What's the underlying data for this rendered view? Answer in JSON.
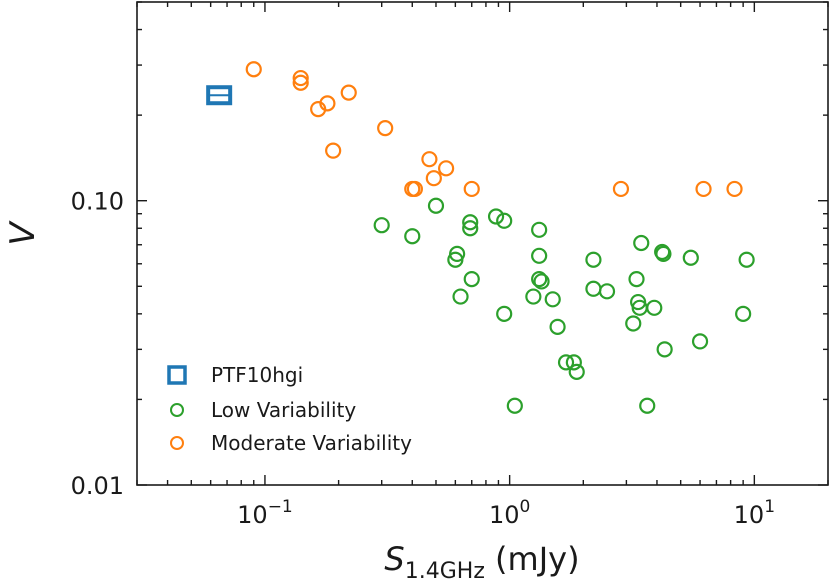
{
  "chart_data": {
    "type": "scatter",
    "title": "",
    "xlabel": {
      "symbol": "S",
      "subscript": "1.4GHz",
      "unit": " (mJy)"
    },
    "ylabel": "V",
    "xscale": "log",
    "yscale": "log",
    "xlim": [
      0.03,
      20
    ],
    "ylim": [
      0.01,
      0.5
    ],
    "legend_position": "lower-left",
    "x_ticks": [
      {
        "value": 0.1,
        "base": "10",
        "exp": "−1"
      },
      {
        "value": 1,
        "base": "10",
        "exp": "0"
      },
      {
        "value": 10,
        "base": "10",
        "exp": "1"
      }
    ],
    "y_ticks": [
      {
        "value": 0.01,
        "label": "0.01"
      },
      {
        "value": 0.1,
        "label": "0.10"
      }
    ],
    "series": [
      {
        "name": "PTF10hgi",
        "marker": "square",
        "color": "#1f77b4",
        "points": [
          [
            0.065,
            0.235
          ]
        ]
      },
      {
        "name": "Low Variability",
        "marker": "circle",
        "color": "#2ca02c",
        "points": [
          [
            0.3,
            0.082
          ],
          [
            0.4,
            0.075
          ],
          [
            0.5,
            0.096
          ],
          [
            0.6,
            0.062
          ],
          [
            0.61,
            0.065
          ],
          [
            0.63,
            0.046
          ],
          [
            0.69,
            0.084
          ],
          [
            0.69,
            0.08
          ],
          [
            0.7,
            0.053
          ],
          [
            0.88,
            0.088
          ],
          [
            0.95,
            0.085
          ],
          [
            0.95,
            0.04
          ],
          [
            1.05,
            0.019
          ],
          [
            1.25,
            0.046
          ],
          [
            1.32,
            0.079
          ],
          [
            1.32,
            0.064
          ],
          [
            1.32,
            0.053
          ],
          [
            1.35,
            0.052
          ],
          [
            1.5,
            0.045
          ],
          [
            1.57,
            0.036
          ],
          [
            1.7,
            0.027
          ],
          [
            1.83,
            0.027
          ],
          [
            1.88,
            0.025
          ],
          [
            2.2,
            0.062
          ],
          [
            2.2,
            0.049
          ],
          [
            2.5,
            0.048
          ],
          [
            3.2,
            0.037
          ],
          [
            3.3,
            0.053
          ],
          [
            3.35,
            0.044
          ],
          [
            3.4,
            0.042
          ],
          [
            3.45,
            0.071
          ],
          [
            3.65,
            0.019
          ],
          [
            3.9,
            0.042
          ],
          [
            4.2,
            0.066
          ],
          [
            4.25,
            0.065
          ],
          [
            4.3,
            0.03
          ],
          [
            5.5,
            0.063
          ],
          [
            6.0,
            0.032
          ],
          [
            9.0,
            0.04
          ],
          [
            9.3,
            0.062
          ]
        ]
      },
      {
        "name": "Moderate Variability",
        "marker": "circle",
        "color": "#ff7f0e",
        "points": [
          [
            0.09,
            0.29
          ],
          [
            0.14,
            0.27
          ],
          [
            0.14,
            0.26
          ],
          [
            0.165,
            0.21
          ],
          [
            0.18,
            0.22
          ],
          [
            0.19,
            0.15
          ],
          [
            0.22,
            0.24
          ],
          [
            0.31,
            0.18
          ],
          [
            0.4,
            0.11
          ],
          [
            0.41,
            0.11
          ],
          [
            0.47,
            0.14
          ],
          [
            0.49,
            0.12
          ],
          [
            0.55,
            0.13
          ],
          [
            0.7,
            0.11
          ],
          [
            2.85,
            0.11
          ],
          [
            6.2,
            0.11
          ],
          [
            8.3,
            0.11
          ]
        ]
      }
    ]
  }
}
